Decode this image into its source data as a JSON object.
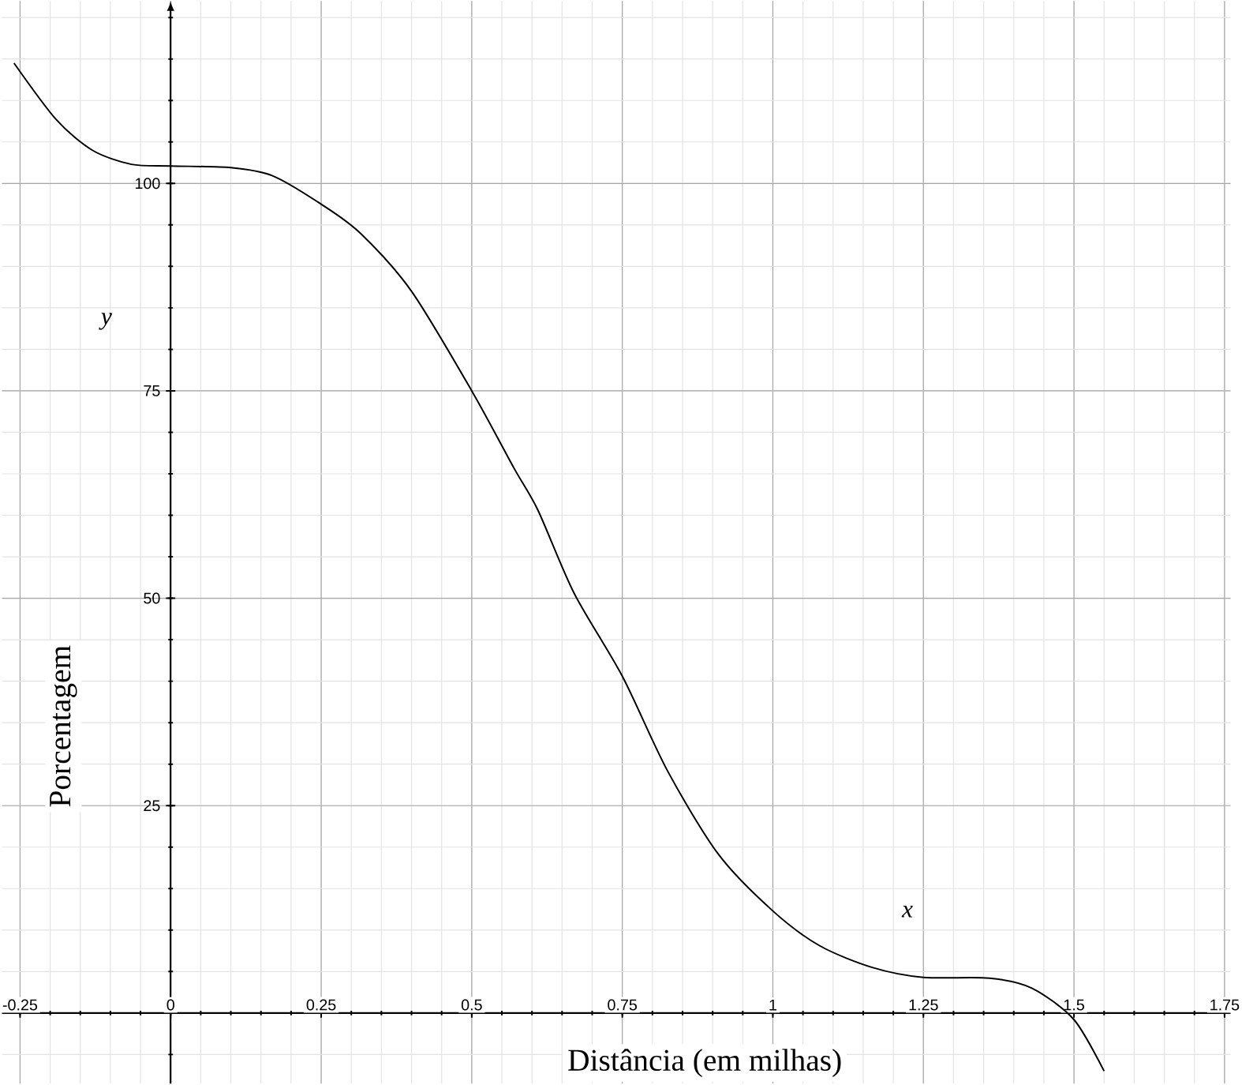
{
  "chart_data": {
    "type": "line",
    "xlabel": "Distância (em milhas)",
    "ylabel": "Porcentagem",
    "annotations": [
      "x",
      "y"
    ],
    "x": [
      -0.26,
      -0.19,
      -0.13,
      -0.065,
      0,
      0.1,
      0.17,
      0.25,
      0.315,
      0.4,
      0.5,
      0.57,
      0.61,
      0.67,
      0.75,
      0.825,
      0.91,
      1.0,
      1.078,
      1.165,
      1.25,
      1.36,
      1.43,
      1.5,
      1.55
    ],
    "values": [
      114.5,
      107.7,
      104,
      102.3,
      102.1,
      101.9,
      100.9,
      97.5,
      94,
      87,
      75,
      65.7,
      60.6,
      50.6,
      40.6,
      29.2,
      19.1,
      12.3,
      8.1,
      5.5,
      4.3,
      4.2,
      3,
      -0.8,
      -7
    ],
    "color": "#000000",
    "xlim": [
      -0.28,
      1.76
    ],
    "ylim": [
      -8.5,
      122
    ],
    "xticks": [
      -0.25,
      0,
      0.25,
      0.5,
      0.75,
      1,
      1.25,
      1.5,
      1.75
    ],
    "yticks": [
      25,
      50,
      75,
      100
    ],
    "grid": true
  }
}
